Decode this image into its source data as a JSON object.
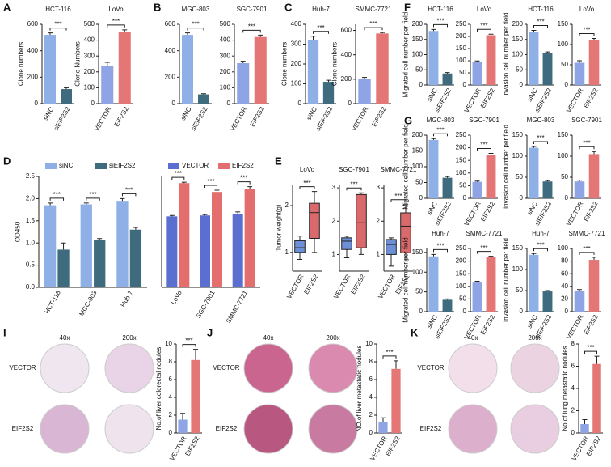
{
  "panel_labels": [
    "A",
    "B",
    "C",
    "D",
    "E",
    "F",
    "G",
    "H",
    "I",
    "J",
    "K"
  ],
  "micrographs": [
    {
      "columns": [
        "40x",
        "200x"
      ],
      "rows": [
        "VECTOR",
        "EIF2S2"
      ]
    },
    {
      "columns": [
        "40x",
        "200x"
      ],
      "rows": [
        "VECTOR",
        "EIF2S2"
      ]
    },
    {
      "columns": [
        "40x",
        "200x"
      ],
      "rows": [
        "VECTOR",
        "EIF2S2"
      ]
    }
  ],
  "chart_data": [
    {
      "type": "bar",
      "title": "HCT-116",
      "ylabel": "Clone numbers",
      "categories": [
        "siNC",
        "siEIF2S2"
      ],
      "values": [
        520,
        110
      ],
      "errors": [
        15,
        10
      ],
      "colors": [
        "#8fb0e6",
        "#3e6b7d"
      ],
      "ylim": [
        0,
        600
      ],
      "yticks": [
        0,
        200,
        400,
        600
      ],
      "significance": "***"
    },
    {
      "type": "bar",
      "title": "LoVo",
      "ylabel": "Clone Numbers",
      "categories": [
        "VECTOR",
        "EIF2S2"
      ],
      "values": [
        240,
        450
      ],
      "errors": [
        20,
        15
      ],
      "colors": [
        "#8ea4e4",
        "#e47676"
      ],
      "ylim": [
        0,
        500
      ],
      "yticks": [
        0,
        100,
        200,
        300,
        400,
        500
      ],
      "significance": "***"
    },
    {
      "type": "bar",
      "title": "MGC-803",
      "categories": [
        "siNC",
        "siEIF2S2"
      ],
      "values": [
        520,
        70
      ],
      "errors": [
        15,
        5
      ],
      "colors": [
        "#8fb0e6",
        "#3e6b7d"
      ],
      "ylim": [
        0,
        600
      ],
      "yticks": [
        0,
        200,
        400,
        600
      ],
      "significance": "***"
    },
    {
      "type": "bar",
      "title": "SGC-7901",
      "categories": [
        "VECTOR",
        "EIF2S2"
      ],
      "values": [
        255,
        420
      ],
      "errors": [
        12,
        12
      ],
      "colors": [
        "#8ea4e4",
        "#e47676"
      ],
      "ylim": [
        0,
        500
      ],
      "yticks": [
        0,
        100,
        200,
        300,
        400,
        500
      ],
      "significance": "***"
    },
    {
      "type": "bar",
      "title": "Huh-7",
      "ylabel": "Clone numbers",
      "categories": [
        "siNC",
        "siEIF2S2"
      ],
      "values": [
        320,
        110
      ],
      "errors": [
        20,
        8
      ],
      "colors": [
        "#8fb0e6",
        "#3e6b7d"
      ],
      "ylim": [
        0,
        400
      ],
      "yticks": [
        0,
        100,
        200,
        300,
        400
      ],
      "significance": "***"
    },
    {
      "type": "bar",
      "title": "SMMC-7721",
      "ylabel": "Clone numbers",
      "categories": [
        "VECTOR",
        "EIF2S2"
      ],
      "values": [
        200,
        575
      ],
      "errors": [
        15,
        8
      ],
      "colors": [
        "#8ea4e4",
        "#e47676"
      ],
      "ylim": [
        0,
        650
      ],
      "yticks": [
        0,
        200,
        400,
        600
      ],
      "significance": "***"
    },
    {
      "type": "grouped_bar",
      "ylabel": "OD450",
      "categories": [
        "HCT-116",
        "MGC-803",
        "Huh-7"
      ],
      "series": [
        {
          "name": "siNC",
          "color": "#8fb0e6",
          "values": [
            1.85,
            1.87,
            1.95
          ],
          "errors": [
            0.05,
            0.03,
            0.05
          ]
        },
        {
          "name": "siEIF2S2",
          "color": "#3e6b7d",
          "values": [
            0.85,
            1.07,
            1.3
          ],
          "errors": [
            0.15,
            0.03,
            0.05
          ]
        }
      ],
      "ylim": [
        0,
        2.5
      ],
      "yticks": [
        {
          "value": 0,
          "label": "0.0"
        },
        0.5,
        {
          "value": 1,
          "label": "1.0"
        },
        1.5,
        {
          "value": 2,
          "label": "2.0"
        },
        2.5
      ],
      "significance": [
        "***",
        "***",
        "***"
      ]
    },
    {
      "type": "grouped_bar",
      "categories": [
        "LoVo",
        "SGC-7901",
        "SMMC-7721"
      ],
      "series": [
        {
          "name": "VECTOR",
          "color": "#5a6fd0",
          "values": [
            1.6,
            1.62,
            1.65
          ],
          "errors": [
            0.02,
            0.02,
            0.05
          ]
        },
        {
          "name": "EIF2S2",
          "color": "#e46d6d",
          "values": [
            2.35,
            2.15,
            2.22
          ],
          "errors": [
            0.02,
            0.04,
            0.05
          ]
        }
      ],
      "ylim": [
        0,
        2.5
      ],
      "significance": [
        "***",
        "***",
        "***"
      ]
    },
    {
      "type": "box",
      "title": "LoVo",
      "ylabel": "Tumor weight(g)",
      "categories": [
        "VECTOR",
        "EIF2S2"
      ],
      "boxes": [
        [
          0.85,
          1.0,
          1.1,
          1.25,
          1.35
        ],
        [
          1.0,
          1.3,
          1.85,
          2.05,
          2.3
        ]
      ],
      "colors": [
        "#6d8fd6",
        "#d9696b"
      ],
      "ylim": [
        0.6,
        2.45
      ],
      "yticks": [
        1,
        2
      ],
      "significance": "***"
    },
    {
      "type": "box",
      "title": "SGC-7901",
      "categories": [
        "VECTOR",
        "EIF2S2"
      ],
      "boxes": [
        [
          0.9,
          1.15,
          1.4,
          1.5,
          1.55
        ],
        [
          1.0,
          1.2,
          1.95,
          2.8,
          2.85
        ]
      ],
      "colors": [
        "#6d8fd6",
        "#d9696b"
      ],
      "ylim": [
        0.5,
        3.1
      ],
      "yticks": [
        1,
        2,
        3
      ],
      "significance": "***"
    },
    {
      "type": "box",
      "title": "SMMC-7721",
      "categories": [
        "VECTOR",
        "EIF2S2"
      ],
      "boxes": [
        [
          0.65,
          1.0,
          1.3,
          1.45,
          1.5
        ],
        [
          0.8,
          1.05,
          1.85,
          2.25,
          2.5
        ]
      ],
      "colors": [
        "#6d8fd6",
        "#d9696b"
      ],
      "ylim": [
        0.5,
        3.1
      ],
      "yticks": [
        1,
        2,
        3
      ],
      "significance": "***"
    },
    {
      "type": "bar",
      "title": "HCT-116",
      "ylabel": "Migrated cell number per field",
      "categories": [
        "siNC",
        "siEIF2S2"
      ],
      "values": [
        178,
        38
      ],
      "errors": [
        5,
        3
      ],
      "colors": [
        "#8fb0e6",
        "#3e6b7d"
      ],
      "ylim": [
        0,
        200
      ],
      "yticks": [
        0,
        50,
        100,
        150,
        200
      ],
      "significance": "***"
    },
    {
      "type": "bar",
      "title": "LoVo",
      "categories": [
        "VECTOR",
        "EIF2S2"
      ],
      "values": [
        95,
        205
      ],
      "errors": [
        4,
        4
      ],
      "colors": [
        "#8ea4e4",
        "#e47676"
      ],
      "ylim": [
        0,
        250
      ],
      "yticks": [
        0,
        50,
        100,
        150,
        200,
        250
      ],
      "significance": "***"
    },
    {
      "type": "bar",
      "title": "HCT-116",
      "ylabel": "Invasion cell number per field",
      "categories": [
        "siNC",
        "siEIF2S2"
      ],
      "values": [
        175,
        105
      ],
      "errors": [
        5,
        4
      ],
      "colors": [
        "#8fb0e6",
        "#3e6b7d"
      ],
      "ylim": [
        0,
        200
      ],
      "yticks": [
        0,
        50,
        100,
        150,
        200
      ],
      "significance": "***"
    },
    {
      "type": "bar",
      "title": "LoVo",
      "categories": [
        "VECTOR",
        "EIF2S2"
      ],
      "values": [
        55,
        110
      ],
      "errors": [
        5,
        5
      ],
      "colors": [
        "#8ea4e4",
        "#e47676"
      ],
      "ylim": [
        0,
        150
      ],
      "yticks": [
        0,
        50,
        100,
        150
      ],
      "significance": "***"
    },
    {
      "type": "bar",
      "title": "MGC-803",
      "ylabel": "Migrated cell number per field",
      "categories": [
        "siNC",
        "siEIF2S2"
      ],
      "values": [
        185,
        65
      ],
      "errors": [
        4,
        4
      ],
      "colors": [
        "#8fb0e6",
        "#3e6b7d"
      ],
      "ylim": [
        0,
        200
      ],
      "yticks": [
        0,
        50,
        100,
        150,
        200
      ],
      "significance": "***"
    },
    {
      "type": "bar",
      "title": "SGC-7901",
      "categories": [
        "VECTOR",
        "EIF2S2"
      ],
      "values": [
        65,
        170
      ],
      "errors": [
        3,
        8
      ],
      "colors": [
        "#8ea4e4",
        "#e47676"
      ],
      "ylim": [
        0,
        250
      ],
      "yticks": [
        0,
        50,
        100,
        150,
        200,
        250
      ],
      "significance": "***"
    },
    {
      "type": "bar",
      "title": "MGC-803",
      "ylabel": "Invasion cell number per field",
      "categories": [
        "siNC",
        "siEIF2S2"
      ],
      "values": [
        120,
        40
      ],
      "errors": [
        3,
        2
      ],
      "colors": [
        "#8fb0e6",
        "#3e6b7d"
      ],
      "ylim": [
        0,
        150
      ],
      "yticks": [
        0,
        50,
        100,
        150
      ],
      "significance": "***"
    },
    {
      "type": "bar",
      "title": "SGC-7901",
      "categories": [
        "VECTOR",
        "EIF2S2"
      ],
      "values": [
        40,
        105
      ],
      "errors": [
        3,
        6
      ],
      "colors": [
        "#8ea4e4",
        "#e47676"
      ],
      "ylim": [
        0,
        150
      ],
      "yticks": [
        0,
        50,
        100,
        150
      ],
      "significance": "***"
    },
    {
      "type": "bar",
      "title": "Huh-7",
      "ylabel": "Migrated cell number per field",
      "categories": [
        "siNC",
        "siEIF2S2"
      ],
      "values": [
        140,
        30
      ],
      "errors": [
        5,
        2
      ],
      "colors": [
        "#8fb0e6",
        "#3e6b7d"
      ],
      "ylim": [
        0,
        160
      ],
      "yticks": [
        0,
        50,
        100,
        150
      ],
      "significance": "***"
    },
    {
      "type": "bar",
      "title": "SMMC-7721",
      "categories": [
        "VECTOR",
        "EIF2S2"
      ],
      "values": [
        115,
        215
      ],
      "errors": [
        5,
        4
      ],
      "colors": [
        "#8ea4e4",
        "#e47676"
      ],
      "ylim": [
        0,
        250
      ],
      "yticks": [
        0,
        50,
        100,
        150,
        200,
        250
      ],
      "significance": "***"
    },
    {
      "type": "bar",
      "title": "Huh-7",
      "ylabel": "Invasion cell number per field",
      "categories": [
        "siNC",
        "siEIF2S2"
      ],
      "values": [
        135,
        48
      ],
      "errors": [
        3,
        2
      ],
      "colors": [
        "#8fb0e6",
        "#3e6b7d"
      ],
      "ylim": [
        0,
        150
      ],
      "yticks": [
        0,
        50,
        100,
        150
      ],
      "significance": "***"
    },
    {
      "type": "bar",
      "title": "SMMC-7721",
      "categories": [
        "VECTOR",
        "EIF2S2"
      ],
      "values": [
        33,
        82
      ],
      "errors": [
        2,
        4
      ],
      "colors": [
        "#8ea4e4",
        "#e47676"
      ],
      "ylim": [
        0,
        100
      ],
      "yticks": [
        0,
        20,
        40,
        60,
        80,
        100
      ],
      "significance": "***"
    },
    {
      "type": "bar",
      "ylabel": "No.of liver colorectal nodules",
      "categories": [
        "VECTOR",
        "EIF2S2"
      ],
      "values": [
        1.5,
        8.2
      ],
      "errors": [
        0.7,
        1.2
      ],
      "colors": [
        "#8ea4e4",
        "#e47676"
      ],
      "ylim": [
        0,
        10
      ],
      "yticks": [
        0,
        2,
        4,
        6,
        8,
        10
      ],
      "significance": "***"
    },
    {
      "type": "bar",
      "ylabel": "NO.of liver metastatic nodules",
      "categories": [
        "VECTOR",
        "EIF2S2"
      ],
      "values": [
        1.2,
        7.2
      ],
      "errors": [
        0.5,
        0.9
      ],
      "colors": [
        "#8ea4e4",
        "#e47676"
      ],
      "ylim": [
        0,
        10
      ],
      "yticks": [
        0,
        2,
        4,
        6,
        8,
        10
      ],
      "significance": "***"
    },
    {
      "type": "bar",
      "ylabel": "No.of lung metastatic nodules",
      "categories": [
        "VECTOR",
        "EIF2S2"
      ],
      "values": [
        0.8,
        6.2
      ],
      "errors": [
        0.4,
        0.7
      ],
      "colors": [
        "#8ea4e4",
        "#e47676"
      ],
      "ylim": [
        0,
        8
      ],
      "yticks": [
        0,
        2,
        4,
        6,
        8
      ],
      "significance": "***"
    }
  ]
}
